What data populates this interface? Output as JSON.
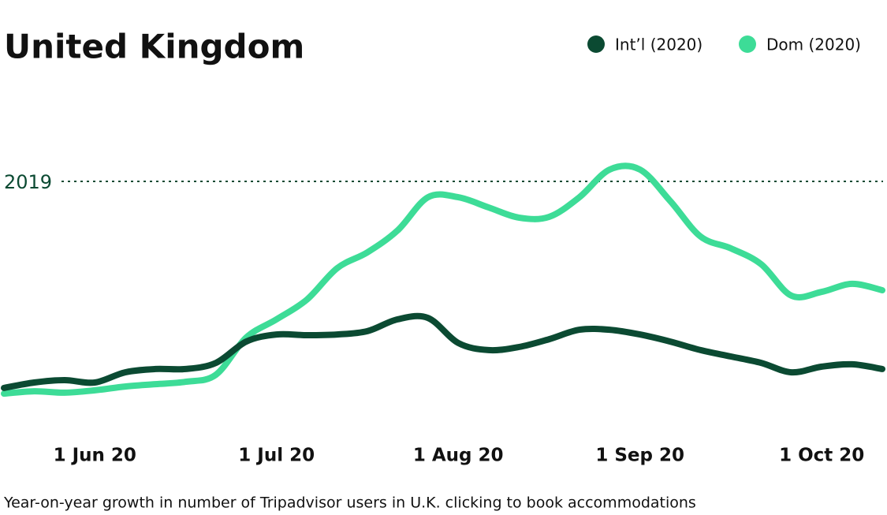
{
  "chart_data": {
    "type": "line",
    "title": "United Kingdom",
    "caption": "Year-on-year growth in number of Tripadvisor users in U.K. clicking to book accommodations",
    "categories": [
      null,
      null,
      null,
      "1 Jun 20",
      null,
      null,
      null,
      null,
      null,
      "1 Jul 20",
      null,
      null,
      null,
      null,
      null,
      "1 Aug 20",
      null,
      null,
      null,
      null,
      null,
      "1 Sep 20",
      null,
      null,
      null,
      null,
      null,
      "1 Oct 20",
      null,
      null
    ],
    "series": [
      {
        "name": "Int’l (2020)",
        "color": "#0b4a32",
        "values": [
          12.7,
          15,
          16,
          15,
          19.3,
          20.7,
          20.7,
          23.3,
          32.3,
          35.3,
          35,
          35.3,
          36.7,
          41.7,
          42.3,
          31.7,
          28.7,
          30,
          33.3,
          37.3,
          37.3,
          35.3,
          32.3,
          28.7,
          26,
          23.3,
          19.3,
          21.7,
          22.7,
          20.7
        ]
      },
      {
        "name": "Dom (2020)",
        "color": "#3ddc97",
        "values": [
          10.3,
          11.3,
          10.7,
          11.7,
          13.3,
          14.3,
          15.3,
          18.3,
          34,
          41.7,
          50,
          63.3,
          70,
          79.3,
          93.3,
          93.3,
          89,
          84.7,
          85,
          93.3,
          105,
          105,
          91.7,
          76.7,
          71.7,
          65,
          51.7,
          53.3,
          56.7,
          54
        ]
      }
    ],
    "ylim": [
      0,
      150
    ],
    "yticks": [
      {
        "value": 100,
        "label": "2019"
      }
    ],
    "legend": "top-right"
  }
}
